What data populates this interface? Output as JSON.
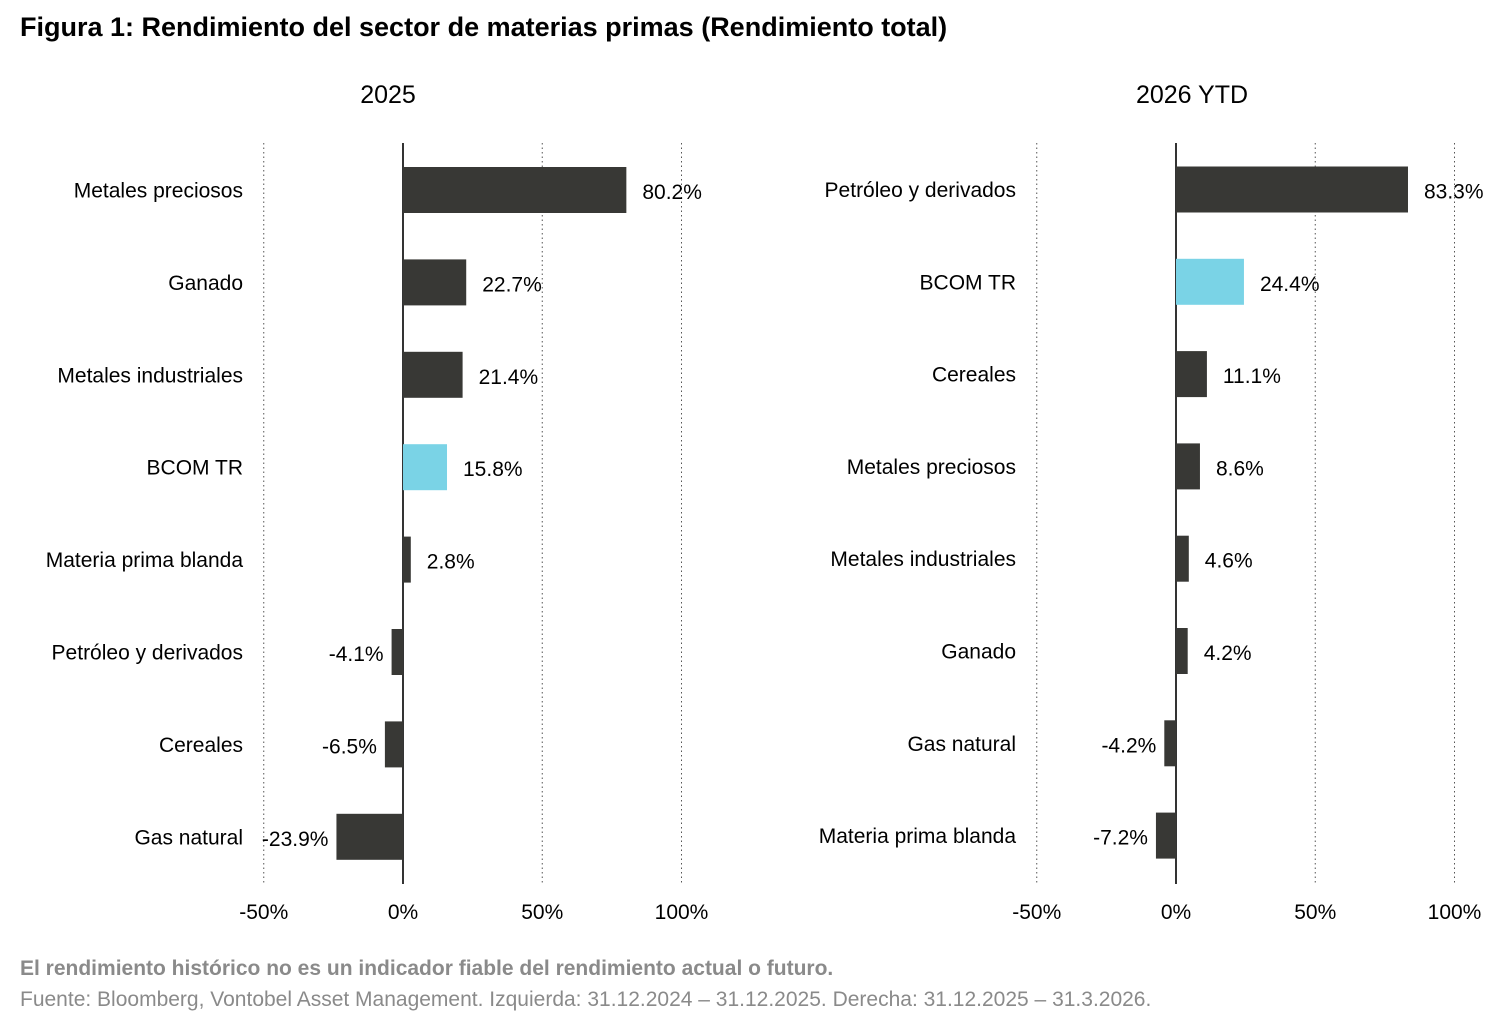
{
  "title": "Figura 1: Rendimiento del sector de materias primas (Rendimiento total)",
  "note": "El rendimiento histórico no es un indicador fiable del rendimiento actual o futuro.",
  "source": "Fuente: Bloomberg, Vontobel Asset Management. Izquierda: 31.12.2024 – 31.12.2025. Derecha: 31.12.2025 – 31.3.2026.",
  "colors": {
    "bar": "#383835",
    "highlight": "#7ad3e6"
  },
  "chart_data": [
    {
      "type": "bar",
      "orientation": "horizontal",
      "title": "2025",
      "categories": [
        "Metales preciosos",
        "Ganado",
        "Metales industriales",
        "BCOM TR",
        "Materia prima blanda",
        "Petróleo y derivados",
        "Cereales",
        "Gas natural"
      ],
      "values": [
        80.2,
        22.7,
        21.4,
        15.8,
        2.8,
        -4.1,
        -6.5,
        -23.9
      ],
      "labels": [
        "80.2%",
        "22.7%",
        "21.4%",
        "15.8%",
        "2.8%",
        "-4.1%",
        "-6.5%",
        "-23.9%"
      ],
      "highlight": [
        "BCOM TR"
      ],
      "xlim": [
        -50,
        100
      ],
      "xticks": [
        -50,
        0,
        50,
        100
      ],
      "xtick_labels": [
        "-50%",
        "0%",
        "50%",
        "100%"
      ],
      "grid": "vertical dotted"
    },
    {
      "type": "bar",
      "orientation": "horizontal",
      "title": "2026 YTD",
      "categories": [
        "Petróleo y derivados",
        "BCOM TR",
        "Cereales",
        "Metales preciosos",
        "Metales industriales",
        "Ganado",
        "Gas natural",
        "Materia prima blanda"
      ],
      "values": [
        83.3,
        24.4,
        11.1,
        8.6,
        4.6,
        4.2,
        -4.2,
        -7.2
      ],
      "labels": [
        "83.3%",
        "24.4%",
        "11.1%",
        "8.6%",
        "4.6%",
        "4.2%",
        "-4.2%",
        "-7.2%"
      ],
      "highlight": [
        "BCOM TR"
      ],
      "xlim": [
        -50,
        100
      ],
      "xticks": [
        -50,
        0,
        50,
        100
      ],
      "xtick_labels": [
        "-50%",
        "0%",
        "50%",
        "100%"
      ],
      "grid": "vertical dotted"
    }
  ]
}
